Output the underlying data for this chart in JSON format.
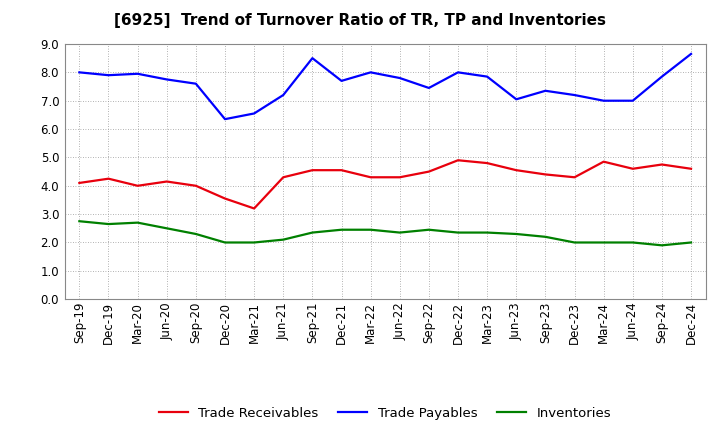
{
  "title": "[6925]  Trend of Turnover Ratio of TR, TP and Inventories",
  "x_labels": [
    "Sep-19",
    "Dec-19",
    "Mar-20",
    "Jun-20",
    "Sep-20",
    "Dec-20",
    "Mar-21",
    "Jun-21",
    "Sep-21",
    "Dec-21",
    "Mar-22",
    "Jun-22",
    "Sep-22",
    "Dec-22",
    "Mar-23",
    "Jun-23",
    "Sep-23",
    "Dec-23",
    "Mar-24",
    "Jun-24",
    "Sep-24",
    "Dec-24"
  ],
  "trade_receivables": [
    4.1,
    4.25,
    4.0,
    4.15,
    4.0,
    3.55,
    3.2,
    4.3,
    4.55,
    4.55,
    4.3,
    4.3,
    4.5,
    4.9,
    4.8,
    4.55,
    4.4,
    4.3,
    4.85,
    4.6,
    4.75,
    4.6
  ],
  "trade_payables": [
    8.0,
    7.9,
    7.95,
    7.75,
    7.6,
    6.35,
    6.55,
    7.2,
    8.5,
    7.7,
    8.0,
    7.8,
    7.45,
    8.0,
    7.85,
    7.05,
    7.35,
    7.2,
    7.0,
    7.0,
    7.85,
    8.65
  ],
  "inventories": [
    2.75,
    2.65,
    2.7,
    2.5,
    2.3,
    2.0,
    2.0,
    2.1,
    2.35,
    2.45,
    2.45,
    2.35,
    2.45,
    2.35,
    2.35,
    2.3,
    2.2,
    2.0,
    2.0,
    2.0,
    1.9,
    2.0
  ],
  "color_tr": "#e8000d",
  "color_tp": "#0000ff",
  "color_inv": "#008000",
  "ylim": [
    0.0,
    9.0
  ],
  "yticks": [
    0.0,
    1.0,
    2.0,
    3.0,
    4.0,
    5.0,
    6.0,
    7.0,
    8.0,
    9.0
  ],
  "legend_labels": [
    "Trade Receivables",
    "Trade Payables",
    "Inventories"
  ],
  "bg_color": "#ffffff",
  "grid_color": "#999999",
  "line_width": 1.6,
  "title_fontsize": 11,
  "tick_fontsize": 8.5
}
